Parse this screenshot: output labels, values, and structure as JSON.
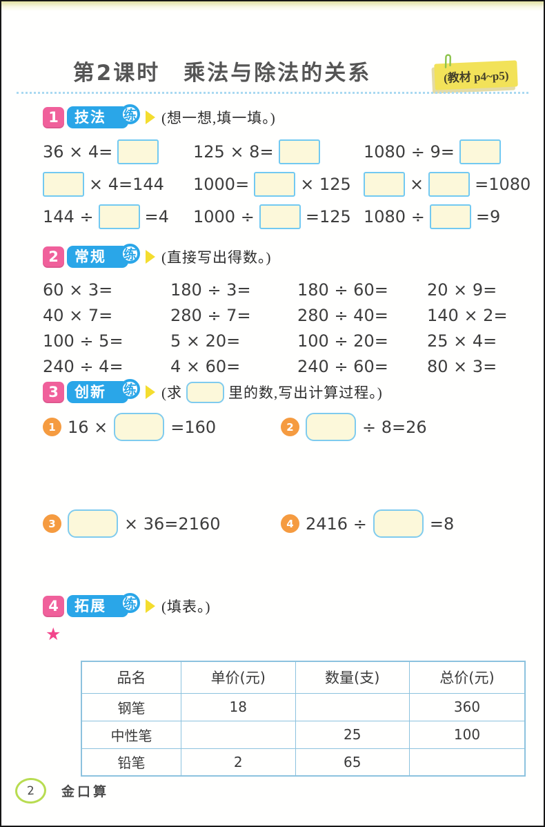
{
  "page": {
    "title": "第2课时　乘法与除法的关系",
    "note_label": "(教材 p4~p5)",
    "footer": {
      "page_number": "2",
      "book_title": "金口算"
    }
  },
  "colors": {
    "badge_pink": "#f0609b",
    "badge_blue": "#2aa6e8",
    "arrow_yellow": "#f4dd2e",
    "box_border_blue": "#72c9f1",
    "box_fill_yellow": "#fcf8da",
    "item_circle_orange": "#f59b40",
    "star_pink": "#f2458b",
    "table_border_blue": "#8cc2de",
    "note_yellow": "#f2e259",
    "footer_ring_green": "#b8dc51"
  },
  "sections": [
    {
      "number": "1",
      "label": "技法",
      "circle": "练",
      "instruction": "(想一想,填一填。)",
      "rows": [
        [
          [
            {
              "t": "36 × 4="
            },
            {
              "b": "sq"
            }
          ],
          [
            {
              "t": "125 × 8="
            },
            {
              "b": "sq"
            }
          ],
          [
            {
              "t": "1080 ÷ 9="
            },
            {
              "b": "sq"
            }
          ]
        ],
        [
          [
            {
              "b": "sq"
            },
            {
              "t": "× 4=144"
            }
          ],
          [
            {
              "t": "1000="
            },
            {
              "b": "sq"
            },
            {
              "t": "× 125"
            }
          ],
          [
            {
              "b": "sq"
            },
            {
              "t": "×"
            },
            {
              "b": "sq"
            },
            {
              "t": "=1080"
            }
          ]
        ],
        [
          [
            {
              "t": "144 ÷"
            },
            {
              "b": "sq"
            },
            {
              "t": "=4"
            }
          ],
          [
            {
              "t": "1000 ÷"
            },
            {
              "b": "sq"
            },
            {
              "t": "=125"
            }
          ],
          [
            {
              "t": "1080 ÷"
            },
            {
              "b": "sq"
            },
            {
              "t": "=9"
            }
          ]
        ]
      ]
    },
    {
      "number": "2",
      "label": "常规",
      "circle": "练",
      "instruction": "(直接写出得数。)",
      "rows": [
        [
          "60 × 3=",
          "180 ÷ 3=",
          "180 ÷ 60=",
          "20 × 9="
        ],
        [
          "40 × 7=",
          "280 ÷ 7=",
          "280 ÷ 40=",
          "140 × 2="
        ],
        [
          "100 ÷ 5=",
          "5 × 20=",
          "100 ÷ 20=",
          "25 × 4="
        ],
        [
          "240 ÷ 4=",
          "4 × 60=",
          "240 ÷ 60=",
          "80 × 3="
        ]
      ]
    },
    {
      "number": "3",
      "label": "创新",
      "circle": "练",
      "instruction_tokens": [
        {
          "t": "(求"
        },
        {
          "b": "small"
        },
        {
          "t": "里的数,写出计算过程。)"
        }
      ],
      "items": [
        {
          "num": "1",
          "tokens": [
            {
              "t": "16 ×"
            },
            {
              "b": "round"
            },
            {
              "t": "=160"
            }
          ]
        },
        {
          "num": "2",
          "tokens": [
            {
              "b": "round"
            },
            {
              "t": "÷ 8=26"
            }
          ]
        },
        {
          "num": "3",
          "tokens": [
            {
              "b": "round"
            },
            {
              "t": "× 36=2160"
            }
          ]
        },
        {
          "num": "4",
          "tokens": [
            {
              "t": "2416 ÷"
            },
            {
              "b": "round"
            },
            {
              "t": "=8"
            }
          ]
        }
      ]
    },
    {
      "number": "4",
      "label": "拓展",
      "circle": "练",
      "instruction": "(填表。)",
      "star": "★",
      "table": {
        "headers": [
          "品名",
          "单价(元)",
          "数量(支)",
          "总价(元)"
        ],
        "rows": [
          [
            "钢笔",
            "18",
            "",
            "360"
          ],
          [
            "中性笔",
            "",
            "25",
            "100"
          ],
          [
            "铅笔",
            "2",
            "65",
            ""
          ]
        ]
      }
    }
  ]
}
